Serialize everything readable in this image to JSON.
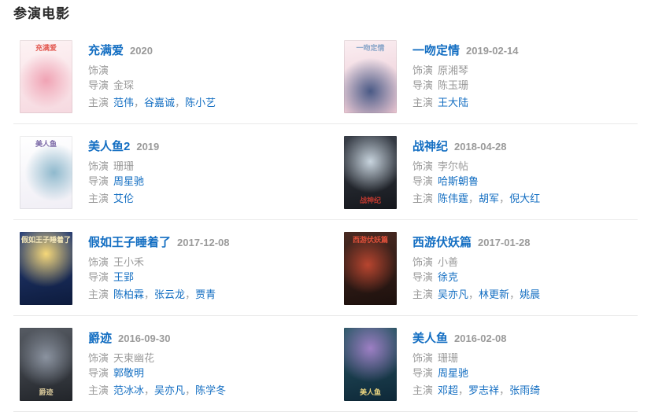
{
  "page": {
    "title": "参演电影"
  },
  "labels": {
    "role": "饰演",
    "director": "导演",
    "cast": "主演"
  },
  "separator": "，",
  "colors": {
    "link": "#136ec2",
    "muted": "#9a9a9a",
    "divider": "#eaeaea",
    "heading": "#2b2b2b"
  },
  "movies": [
    {
      "title": "充满爱",
      "date": "2020",
      "role": "",
      "directors": [
        {
          "name": "金琛",
          "link": false
        }
      ],
      "cast": [
        {
          "name": "范伟",
          "link": true
        },
        {
          "name": "谷嘉诚",
          "link": true
        },
        {
          "name": "陈小艺",
          "link": true
        }
      ],
      "poster": {
        "label": "充满爱",
        "label_color": "#e2574f",
        "label_pos": "top",
        "top": "#fdf3f4",
        "bottom": "#f6d9e0",
        "accent": "#f0a3b4",
        "accent_at": "50% 55%"
      }
    },
    {
      "title": "一吻定情",
      "date": "2019-02-14",
      "role": "原湘琴",
      "directors": [
        {
          "name": "陈玉珊",
          "link": false
        }
      ],
      "cast": [
        {
          "name": "王大陆",
          "link": true
        }
      ],
      "poster": {
        "label": "一吻定情",
        "label_color": "#8aa6c9",
        "label_pos": "top",
        "top": "#fbeff2",
        "bottom": "#e9c3cf",
        "accent": "#4a5a86",
        "accent_at": "50% 70%"
      }
    },
    {
      "title": "美人鱼2",
      "date": "2019",
      "role": "珊珊",
      "directors": [
        {
          "name": "周星驰",
          "link": true
        }
      ],
      "cast": [
        {
          "name": "艾伦",
          "link": true
        }
      ],
      "poster": {
        "label": "美人鱼",
        "label_color": "#7a68a6",
        "label_pos": "top",
        "top": "#ffffff",
        "bottom": "#f0eef5",
        "accent": "#8fb9cd",
        "accent_at": "65% 50%"
      }
    },
    {
      "title": "战神纪",
      "date": "2018-04-28",
      "role": "孛尔帖",
      "directors": [
        {
          "name": "哈斯朝鲁",
          "link": true
        }
      ],
      "cast": [
        {
          "name": "陈伟霆",
          "link": true
        },
        {
          "name": "胡军",
          "link": true
        },
        {
          "name": "倪大红",
          "link": true
        }
      ],
      "poster": {
        "label": "战神纪",
        "label_color": "#c2392f",
        "label_pos": "bottom",
        "top": "#3a404a",
        "bottom": "#15171c",
        "accent": "#c8d4de",
        "accent_at": "50% 35%"
      }
    },
    {
      "title": "假如王子睡着了",
      "date": "2017-12-08",
      "role": "王小禾",
      "directors": [
        {
          "name": "王郢",
          "link": true
        }
      ],
      "cast": [
        {
          "name": "陈柏霖",
          "link": true
        },
        {
          "name": "张云龙",
          "link": true
        },
        {
          "name": "贾青",
          "link": true
        }
      ],
      "poster": {
        "label": "假如王子睡着了",
        "label_color": "#f3e6b8",
        "label_pos": "top",
        "top": "#27407c",
        "bottom": "#0d1b3d",
        "accent": "#f6d879",
        "accent_at": "50% 30%"
      }
    },
    {
      "title": "西游伏妖篇",
      "date": "2017-01-28",
      "role": "小善",
      "directors": [
        {
          "name": "徐克",
          "link": true
        }
      ],
      "cast": [
        {
          "name": "吴亦凡",
          "link": true
        },
        {
          "name": "林更新",
          "link": true
        },
        {
          "name": "姚晨",
          "link": true
        }
      ],
      "poster": {
        "label": "西游伏妖篇",
        "label_color": "#e0503a",
        "label_pos": "top",
        "top": "#4a2a22",
        "bottom": "#1c100d",
        "accent": "#b8452f",
        "accent_at": "45% 45%"
      }
    },
    {
      "title": "爵迹",
      "date": "2016-09-30",
      "role": "天束幽花",
      "directors": [
        {
          "name": "郭敬明",
          "link": true
        }
      ],
      "cast": [
        {
          "name": "范冰冰",
          "link": true
        },
        {
          "name": "吴亦凡",
          "link": true
        },
        {
          "name": "陈学冬",
          "link": true
        }
      ],
      "poster": {
        "label": "爵迹",
        "label_color": "#d8c89a",
        "label_pos": "bottom",
        "top": "#565b63",
        "bottom": "#22252a",
        "accent": "#8b93a0",
        "accent_at": "50% 40%"
      }
    },
    {
      "title": "美人鱼",
      "date": "2016-02-08",
      "role": "珊珊",
      "directors": [
        {
          "name": "周星驰",
          "link": true
        }
      ],
      "cast": [
        {
          "name": "邓超",
          "link": true
        },
        {
          "name": "罗志祥",
          "link": true
        },
        {
          "name": "张雨绮",
          "link": true
        }
      ],
      "poster": {
        "label": "美人鱼",
        "label_color": "#e8d27e",
        "label_pos": "bottom",
        "top": "#2a5a68",
        "bottom": "#0e2838",
        "accent": "#9d7fc4",
        "accent_at": "50% 28%"
      }
    }
  ]
}
